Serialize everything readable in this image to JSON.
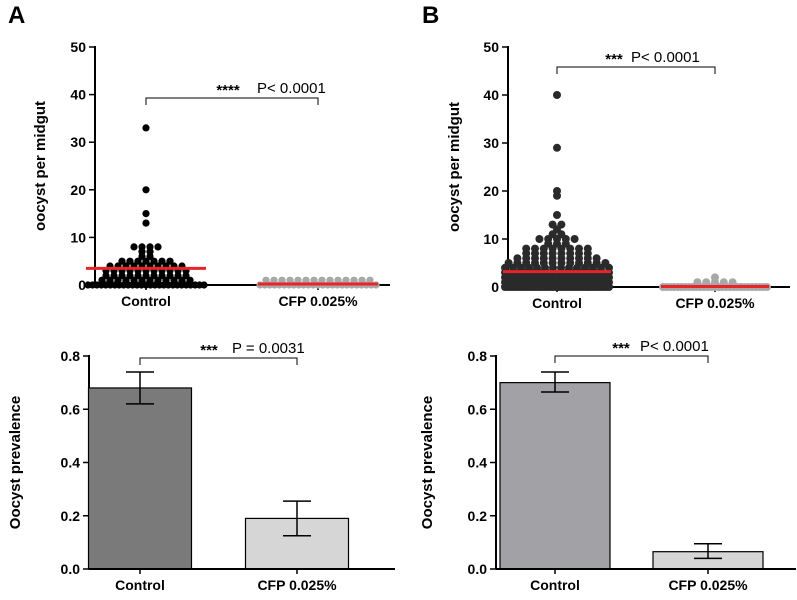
{
  "figure": {
    "panel_labels": [
      "A",
      "B"
    ]
  },
  "colors": {
    "dot_control_A": "#000000",
    "dot_control_B": "#2a2a2a",
    "dot_cfp": "#a8a8a8",
    "median_line": "#e8232a",
    "bar_control_A": "#7a7a7a",
    "bar_control_B": "#a2a2a6",
    "bar_cfp": "#d6d6d6"
  },
  "chart_data": [
    {
      "id": "A_top",
      "type": "scatter",
      "title": "",
      "xlabel": "",
      "ylabel": "oocyst per midgut",
      "ylim": [
        0,
        50
      ],
      "yticks": [
        0,
        10,
        20,
        30,
        40,
        50
      ],
      "categories": [
        "Control",
        "CFP 0.025%"
      ],
      "series": [
        {
          "category": "Control",
          "values": [
            33,
            20,
            15,
            13,
            8,
            8,
            8,
            8,
            7,
            7,
            6,
            6,
            5,
            5,
            5,
            5,
            5,
            5,
            5,
            4,
            4,
            4,
            4,
            4,
            4,
            4,
            4,
            4,
            4,
            3,
            3,
            3,
            3,
            3,
            3,
            3,
            3,
            3,
            3,
            3,
            2,
            2,
            2,
            2,
            2,
            2,
            2,
            2,
            2,
            2,
            2,
            1,
            1,
            1,
            1,
            1,
            1,
            1,
            1,
            1,
            1,
            1,
            1,
            0,
            0,
            0,
            0,
            0,
            0,
            0,
            0,
            0,
            0,
            0,
            0,
            0,
            0,
            0,
            0,
            0,
            0,
            0,
            0,
            0,
            0,
            0,
            0,
            0,
            0,
            0
          ],
          "median": 3.5
        },
        {
          "category": "CFP 0.025%",
          "values": [
            1,
            1,
            1,
            1,
            1,
            1,
            1,
            1,
            1,
            1,
            1,
            1,
            1,
            1,
            0,
            0,
            0,
            0,
            0,
            0,
            0,
            0,
            0,
            0,
            0,
            0,
            0,
            0,
            0,
            0,
            0,
            0,
            0,
            0,
            0,
            0,
            0,
            0,
            0
          ],
          "median": 0.2
        }
      ],
      "annotation": {
        "stars": "****",
        "p_text": "P< 0.0001"
      }
    },
    {
      "id": "B_top",
      "type": "scatter",
      "title": "",
      "xlabel": "",
      "ylabel": "oocyst per midgut",
      "ylim": [
        0,
        50
      ],
      "yticks": [
        0,
        10,
        20,
        30,
        40,
        50
      ],
      "categories": [
        "Control",
        "CFP 0.025%"
      ],
      "series": [
        {
          "category": "Control",
          "values": [
            40,
            29,
            20,
            19,
            15,
            13,
            13,
            12,
            11,
            11,
            10,
            10,
            10,
            10,
            10,
            9,
            9,
            9,
            8,
            8,
            8,
            8,
            8,
            8,
            8,
            8,
            7,
            7,
            7,
            7,
            7,
            7,
            7,
            7,
            6,
            6,
            6,
            6,
            6,
            6,
            6,
            6,
            6,
            6,
            5,
            5,
            5,
            5,
            5,
            5,
            5,
            5,
            5,
            5,
            5,
            5,
            4,
            4,
            4,
            4,
            4,
            4,
            4,
            4,
            4,
            4,
            4,
            4,
            4,
            4,
            3,
            3,
            3,
            3,
            3,
            3,
            3,
            3,
            3,
            3,
            3,
            3,
            3,
            3,
            3,
            3,
            2,
            2,
            2,
            2,
            2,
            2,
            2,
            2,
            2,
            2,
            2,
            2,
            2,
            2,
            2,
            2,
            2,
            2,
            1,
            1,
            1,
            1,
            1,
            1,
            1,
            1,
            1,
            1,
            1,
            1,
            1,
            1,
            1,
            1,
            1,
            1,
            1,
            1,
            0,
            0,
            0,
            0,
            0,
            0,
            0,
            0,
            0,
            0,
            0,
            0,
            0,
            0,
            0,
            0,
            0,
            0,
            0,
            0,
            0,
            0,
            0,
            0,
            0,
            0,
            0,
            0,
            0,
            0,
            0,
            0,
            0,
            0,
            0,
            0,
            0,
            0
          ],
          "median": 3.2
        },
        {
          "category": "CFP 0.025%",
          "values": [
            2,
            1,
            1,
            1,
            1,
            1,
            0,
            0,
            0,
            0,
            0,
            0,
            0,
            0,
            0,
            0,
            0,
            0,
            0,
            0,
            0,
            0,
            0,
            0,
            0,
            0,
            0,
            0,
            0,
            0,
            0,
            0,
            0,
            0,
            0
          ],
          "median": 0.1
        }
      ],
      "annotation": {
        "stars": "***",
        "p_text": "P< 0.0001"
      }
    },
    {
      "id": "A_bottom",
      "type": "bar",
      "title": "",
      "xlabel": "",
      "ylabel": "Oocyst prevalence",
      "ylim": [
        0,
        0.8
      ],
      "yticks": [
        "0.0",
        "0.2",
        "0.4",
        "0.6",
        "0.8"
      ],
      "categories": [
        "Control",
        "CFP 0.025%"
      ],
      "values": [
        0.68,
        0.19
      ],
      "errors": [
        [
          0.62,
          0.74
        ],
        [
          0.125,
          0.255
        ]
      ],
      "annotation": {
        "stars": "***",
        "p_text": "P = 0.0031"
      }
    },
    {
      "id": "B_bottom",
      "type": "bar",
      "title": "",
      "xlabel": "",
      "ylabel": "Oocyst prevalence",
      "ylim": [
        0,
        0.8
      ],
      "yticks": [
        "0.0",
        "0.2",
        "0.4",
        "0.6",
        "0.8"
      ],
      "categories": [
        "Control",
        "CFP 0.025%"
      ],
      "values": [
        0.7,
        0.065
      ],
      "errors": [
        [
          0.665,
          0.74
        ],
        [
          0.04,
          0.095
        ]
      ],
      "annotation": {
        "stars": "***",
        "p_text": "P< 0.0001"
      }
    }
  ]
}
